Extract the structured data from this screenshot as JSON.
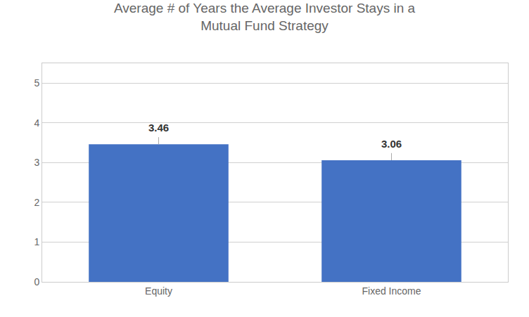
{
  "chart_data": {
    "type": "bar",
    "title": "Average # of Years the Average Investor Stays in a\nMutual Fund Strategy",
    "categories": [
      "Equity",
      "Fixed Income"
    ],
    "values": [
      3.46,
      3.06
    ],
    "errors": [
      0.18,
      0.18
    ],
    "color": "#4472C4",
    "ylim": [
      0,
      5.5
    ],
    "yticks": [
      0,
      1,
      2,
      3,
      4,
      5
    ],
    "grid": true,
    "data_labels": true
  }
}
